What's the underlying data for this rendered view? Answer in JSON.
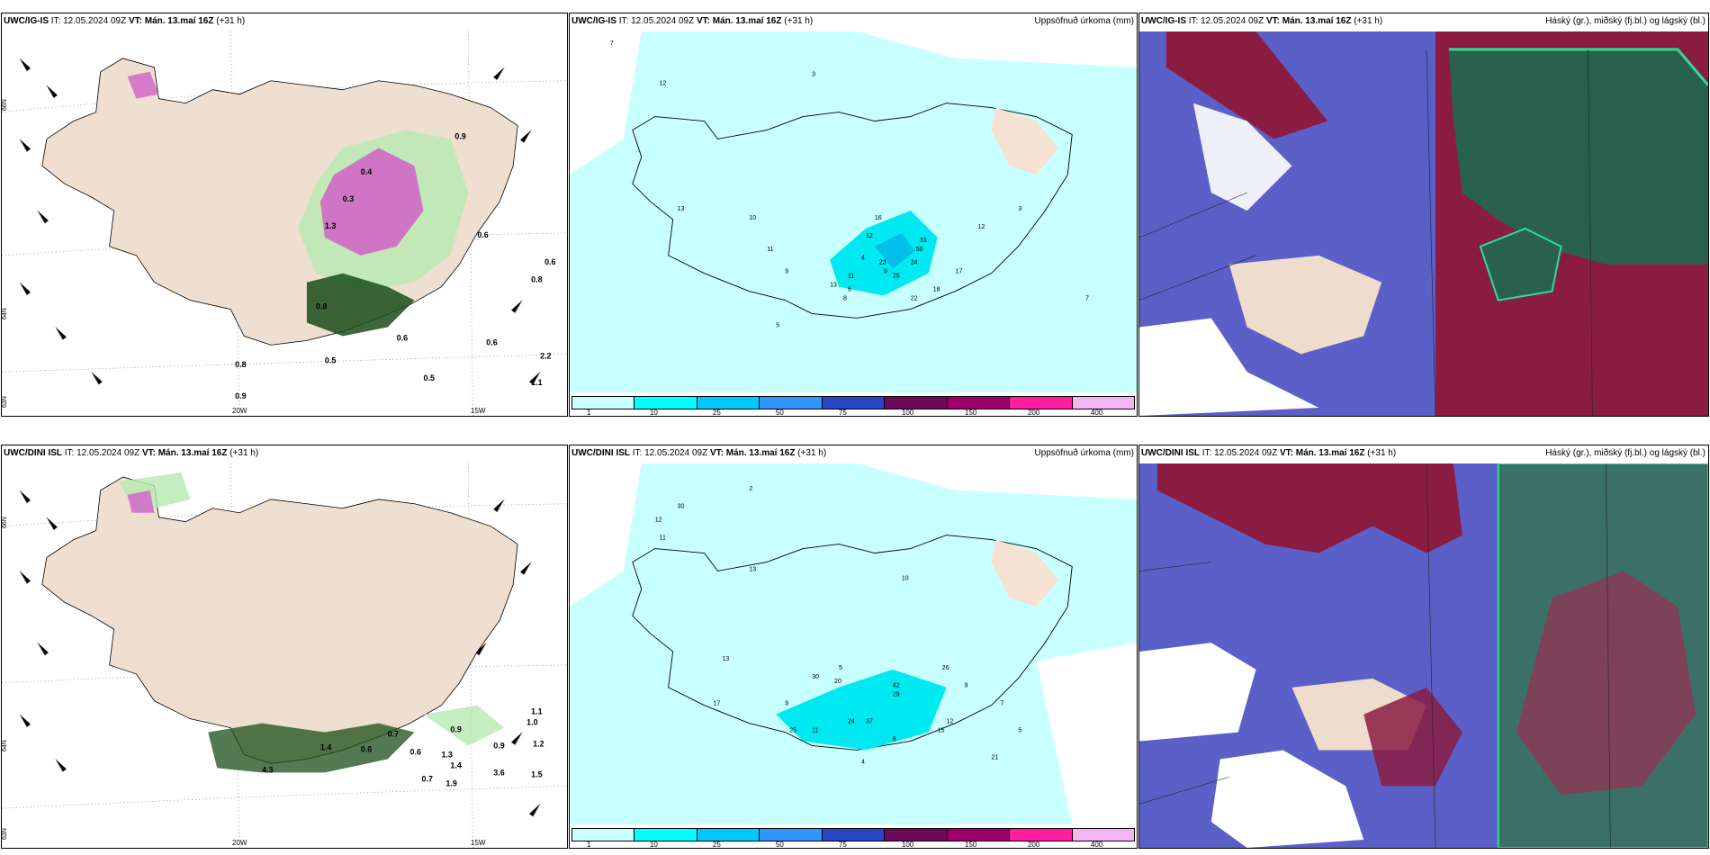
{
  "panels": [
    {
      "model": "UWC/IG-IS",
      "it_label": "IT:",
      "it": "12.05.2024 09Z",
      "vt_label": "VT:",
      "vt": "Mán. 13.maí 16Z",
      "lead": "(+31 h)",
      "right_title": ""
    },
    {
      "model": "UWC/IG-IS",
      "it_label": "IT:",
      "it": "12.05.2024 09Z",
      "vt_label": "VT:",
      "vt": "Mán. 13.maí 16Z",
      "lead": "(+31 h)",
      "right_title": "Uppsöfnuð úrkoma (mm)"
    },
    {
      "model": "UWC/IG-IS",
      "it_label": "IT:",
      "it": "12.05.2024 09Z",
      "vt_label": "VT:",
      "vt": "Mán. 13.maí 16Z",
      "lead": "(+31 h)",
      "right_title": "Háský (gr.), miðský (fj.bl.) og lágský (bl.)"
    },
    {
      "model": "UWC/DINI ISL",
      "it_label": "IT:",
      "it": "12.05.2024 09Z",
      "vt_label": "VT:",
      "vt": "Mán. 13.maí 16Z",
      "lead": "(+31 h)",
      "right_title": ""
    },
    {
      "model": "UWC/DINI ISL",
      "it_label": "IT:",
      "it": "12.05.2024 09Z",
      "vt_label": "VT:",
      "vt": "Mán. 13.maí 16Z",
      "lead": "(+31 h)",
      "right_title": "Uppsöfnuð úrkoma (mm)"
    },
    {
      "model": "UWC/DINI ISL",
      "it_label": "IT:",
      "it": "12.05.2024 09Z",
      "vt_label": "VT:",
      "vt": "Mán. 13.maí 16Z",
      "lead": "(+31 h)",
      "right_title": "Háský (gr.), miðský (fj.bl.) og lágský (bl.)"
    }
  ],
  "axis": {
    "lon_20": "20W",
    "lon_15": "15W",
    "lat_66": "66N",
    "lat_64": "64N",
    "lat_63": "63N"
  },
  "colorbar": {
    "labels": [
      "1",
      "10",
      "25",
      "50",
      "75",
      "100",
      "150",
      "200",
      "400"
    ],
    "colors": [
      "#c8ffff",
      "#00ffff",
      "#00c8ff",
      "#3296ff",
      "#2846c8",
      "#6e0a5a",
      "#a0006e",
      "#ff1ea0",
      "#f5b4f5"
    ]
  },
  "precip_values": {
    "top": [
      "7",
      "3",
      "12",
      "13",
      "10",
      "11",
      "9",
      "12",
      "6",
      "4",
      "11",
      "9",
      "8",
      "16",
      "23",
      "24",
      "25",
      "50",
      "33",
      "18",
      "22",
      "17",
      "12",
      "5",
      "7",
      "3",
      "13"
    ],
    "bottom": [
      "2",
      "30",
      "12",
      "11",
      "13",
      "9",
      "5",
      "13",
      "10",
      "24",
      "20",
      "30",
      "29",
      "42",
      "25",
      "17",
      "11",
      "12",
      "8",
      "4",
      "26",
      "15",
      "7",
      "9",
      "5",
      "37",
      "21"
    ]
  },
  "temp_values": {
    "top": [
      "0.9",
      "0.6",
      "0.5",
      "0.6",
      "0.4",
      "1.3",
      "0.3",
      "0.8",
      "0.6",
      "0.8",
      "0.9",
      "0.6",
      "0.5",
      "0.8",
      "1.1",
      "2.2"
    ],
    "bottom": [
      "0.7",
      "0.9",
      "1.1",
      "1.0",
      "1.2",
      "0.6",
      "1.4",
      "0.7",
      "3.6",
      "1.5",
      "0.9",
      "1.3",
      "0.6",
      "1.4",
      "4.3",
      "1.9"
    ]
  }
}
